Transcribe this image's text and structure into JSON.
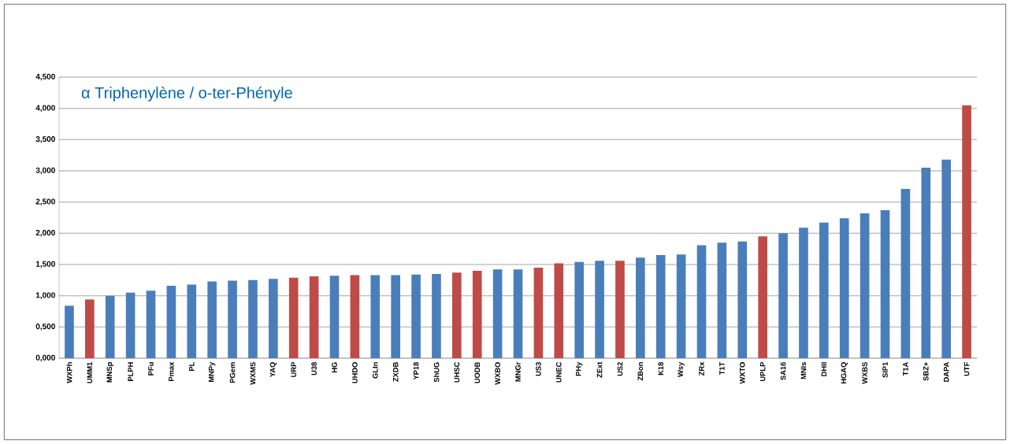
{
  "chart_data": {
    "type": "bar",
    "title": "α Triphenylène / o-ter-Phényle",
    "categories": [
      "WXPh",
      "UMM1",
      "MNSp",
      "PLPH",
      "PFu",
      "Pmax",
      "PL",
      "MNPy",
      "PGem",
      "WXMS",
      "YAQ",
      "URP",
      "U38",
      "HG",
      "UHDO",
      "GLIn",
      "ZXDB",
      "YP18",
      "ShUG",
      "UHSC",
      "UODB",
      "WXBO",
      "MNGr",
      "US3",
      "UNEC",
      "PHy",
      "ZExt",
      "US2",
      "ZBon",
      "K18",
      "Wsy",
      "ZRx",
      "T1T",
      "WXTO",
      "UPLP",
      "SA16",
      "MNIs",
      "DHII",
      "HGAQ",
      "WXBS",
      "SIP1",
      "T1A",
      "SBZ+",
      "DAPA",
      "UTF"
    ],
    "values": [
      0.84,
      0.94,
      1.0,
      1.05,
      1.08,
      1.16,
      1.18,
      1.23,
      1.24,
      1.25,
      1.27,
      1.29,
      1.31,
      1.32,
      1.33,
      1.33,
      1.33,
      1.34,
      1.35,
      1.37,
      1.4,
      1.42,
      1.42,
      1.45,
      1.52,
      1.54,
      1.56,
      1.56,
      1.61,
      1.65,
      1.66,
      1.81,
      1.85,
      1.87,
      1.95,
      2.0,
      2.09,
      2.17,
      2.24,
      2.32,
      2.37,
      2.71,
      3.05,
      3.18,
      4.05
    ],
    "colors": [
      "#4a7ebb",
      "#be4b48",
      "#4a7ebb",
      "#4a7ebb",
      "#4a7ebb",
      "#4a7ebb",
      "#4a7ebb",
      "#4a7ebb",
      "#4a7ebb",
      "#4a7ebb",
      "#4a7ebb",
      "#be4b48",
      "#be4b48",
      "#4a7ebb",
      "#be4b48",
      "#4a7ebb",
      "#4a7ebb",
      "#4a7ebb",
      "#4a7ebb",
      "#be4b48",
      "#be4b48",
      "#4a7ebb",
      "#4a7ebb",
      "#be4b48",
      "#be4b48",
      "#4a7ebb",
      "#4a7ebb",
      "#be4b48",
      "#4a7ebb",
      "#4a7ebb",
      "#4a7ebb",
      "#4a7ebb",
      "#4a7ebb",
      "#4a7ebb",
      "#be4b48",
      "#4a7ebb",
      "#4a7ebb",
      "#4a7ebb",
      "#4a7ebb",
      "#4a7ebb",
      "#4a7ebb",
      "#4a7ebb",
      "#4a7ebb",
      "#4a7ebb",
      "#be4b48"
    ],
    "ylim": [
      0,
      4.5
    ],
    "yticks": [
      {
        "value": 0,
        "label": "0,000"
      },
      {
        "value": 0.5,
        "label": "0,500"
      },
      {
        "value": 1,
        "label": "1,000"
      },
      {
        "value": 1.5,
        "label": "1,500"
      },
      {
        "value": 2,
        "label": "2,000"
      },
      {
        "value": 2.5,
        "label": "2,500"
      },
      {
        "value": 3,
        "label": "3,000"
      },
      {
        "value": 3.5,
        "label": "3,500"
      },
      {
        "value": 4,
        "label": "4,000"
      },
      {
        "value": 4.5,
        "label": "4,500"
      }
    ],
    "grid": "y"
  }
}
